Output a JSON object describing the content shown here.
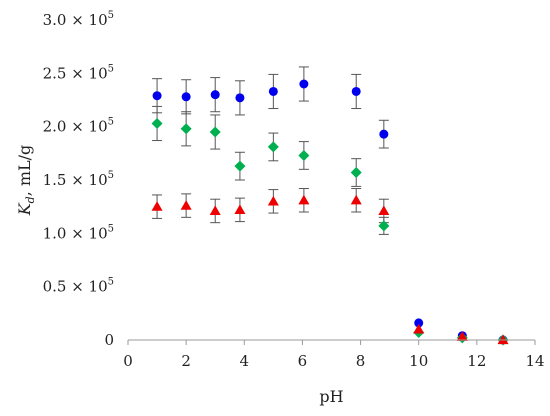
{
  "chart_data": {
    "type": "scatter",
    "xlabel": "pH",
    "ylabel": {
      "symbol": "K",
      "subscript": "d",
      "rest": ", mL/g"
    },
    "xlim": [
      0,
      14
    ],
    "ylim": [
      0,
      300000
    ],
    "x_ticks": [
      {
        "value": 0,
        "label": "0"
      },
      {
        "value": 2,
        "label": "2"
      },
      {
        "value": 4,
        "label": "4"
      },
      {
        "value": 6,
        "label": "6"
      },
      {
        "value": 8,
        "label": "8"
      },
      {
        "value": 10,
        "label": "10"
      },
      {
        "value": 12,
        "label": "12"
      },
      {
        "value": 14,
        "label": "14"
      }
    ],
    "y_ticks": [
      {
        "value": 0,
        "label": "0"
      },
      {
        "value": 50000,
        "mantissa": "0.5",
        "exponent": "5"
      },
      {
        "value": 100000,
        "mantissa": "1.0",
        "exponent": "5"
      },
      {
        "value": 150000,
        "mantissa": "1.5",
        "exponent": "5"
      },
      {
        "value": 200000,
        "mantissa": "2.0",
        "exponent": "5"
      },
      {
        "value": 250000,
        "mantissa": "2.5",
        "exponent": "5"
      },
      {
        "value": 300000,
        "mantissa": "3.0",
        "exponent": "5"
      }
    ],
    "grid": false,
    "series": [
      {
        "marker": "circle",
        "color": "#0000ee",
        "points": [
          {
            "x": 1.0,
            "y": 229000,
            "err": 16000
          },
          {
            "x": 2.0,
            "y": 228000,
            "err": 16000
          },
          {
            "x": 3.0,
            "y": 230000,
            "err": 16000
          },
          {
            "x": 3.85,
            "y": 227000,
            "err": 16000
          },
          {
            "x": 5.0,
            "y": 233000,
            "err": 16000
          },
          {
            "x": 6.05,
            "y": 240000,
            "err": 16000
          },
          {
            "x": 7.85,
            "y": 233000,
            "err": 16000
          },
          {
            "x": 8.8,
            "y": 193000,
            "err": 13000
          },
          {
            "x": 10.0,
            "y": 16000
          },
          {
            "x": 11.5,
            "y": 4000
          },
          {
            "x": 12.9,
            "y": 0
          }
        ]
      },
      {
        "marker": "diamond",
        "color": "#00b050",
        "points": [
          {
            "x": 1.0,
            "y": 203000,
            "err": 16000
          },
          {
            "x": 2.0,
            "y": 198000,
            "err": 16000
          },
          {
            "x": 3.0,
            "y": 195000,
            "err": 16000
          },
          {
            "x": 3.85,
            "y": 163000,
            "err": 13000
          },
          {
            "x": 5.0,
            "y": 181000,
            "err": 13000
          },
          {
            "x": 6.05,
            "y": 173000,
            "err": 13000
          },
          {
            "x": 7.85,
            "y": 157000,
            "err": 13000
          },
          {
            "x": 8.8,
            "y": 107000,
            "err": 8000
          },
          {
            "x": 10.0,
            "y": 7000
          },
          {
            "x": 11.5,
            "y": 2000
          },
          {
            "x": 12.9,
            "y": 0
          }
        ]
      },
      {
        "marker": "triangle",
        "color": "#ee0000",
        "points": [
          {
            "x": 1.0,
            "y": 125000,
            "err": 11000
          },
          {
            "x": 2.0,
            "y": 126000,
            "err": 11000
          },
          {
            "x": 3.0,
            "y": 121000,
            "err": 11000
          },
          {
            "x": 3.85,
            "y": 122000,
            "err": 11000
          },
          {
            "x": 5.0,
            "y": 130000,
            "err": 11000
          },
          {
            "x": 6.05,
            "y": 131000,
            "err": 11000
          },
          {
            "x": 7.85,
            "y": 131000,
            "err": 11000
          },
          {
            "x": 8.8,
            "y": 121000,
            "err": 11000
          },
          {
            "x": 10.0,
            "y": 10000
          },
          {
            "x": 11.5,
            "y": 3000
          },
          {
            "x": 12.9,
            "y": 0
          }
        ]
      }
    ]
  }
}
